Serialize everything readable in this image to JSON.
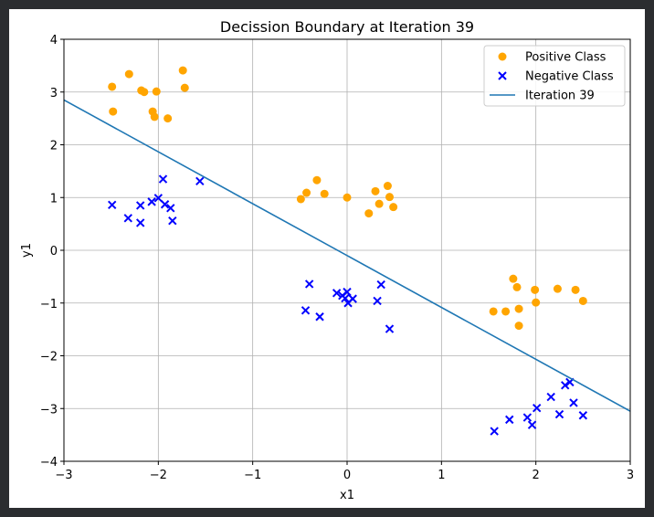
{
  "chart_data": {
    "type": "scatter",
    "title": "Decission Boundary at Iteration 39",
    "xlabel": "x1",
    "ylabel": "y1",
    "xlim": [
      -3,
      3
    ],
    "ylim": [
      -4,
      4
    ],
    "xticks": [
      -3,
      -2,
      -1,
      0,
      1,
      2,
      3
    ],
    "yticks": [
      -4,
      -3,
      -2,
      -1,
      0,
      1,
      2,
      3,
      4
    ],
    "xtick_labels": [
      "−3",
      "−2",
      "−1",
      "0",
      "1",
      "2",
      "3"
    ],
    "ytick_labels": [
      "−4",
      "−3",
      "−2",
      "−1",
      "0",
      "1",
      "2",
      "3",
      "4"
    ],
    "grid": true,
    "legend_position": "top-right",
    "series": [
      {
        "name": "Positive Class",
        "marker": "circle",
        "color": "#ffa500",
        "points": [
          [
            -2.49,
            3.1
          ],
          [
            -2.31,
            3.34
          ],
          [
            -2.18,
            3.03
          ],
          [
            -2.15,
            3.0
          ],
          [
            -2.02,
            3.01
          ],
          [
            -1.74,
            3.41
          ],
          [
            -1.72,
            3.08
          ],
          [
            -2.48,
            2.63
          ],
          [
            -2.06,
            2.63
          ],
          [
            -2.04,
            2.53
          ],
          [
            -1.9,
            2.5
          ],
          [
            -0.49,
            0.97
          ],
          [
            -0.43,
            1.09
          ],
          [
            -0.32,
            1.33
          ],
          [
            -0.24,
            1.07
          ],
          [
            0.0,
            1.0
          ],
          [
            0.3,
            1.12
          ],
          [
            0.34,
            0.88
          ],
          [
            0.43,
            1.22
          ],
          [
            0.45,
            1.01
          ],
          [
            0.49,
            0.82
          ],
          [
            0.23,
            0.7
          ],
          [
            1.55,
            -1.16
          ],
          [
            1.68,
            -1.16
          ],
          [
            1.76,
            -0.54
          ],
          [
            1.8,
            -0.7
          ],
          [
            1.82,
            -1.11
          ],
          [
            1.82,
            -1.43
          ],
          [
            1.99,
            -0.75
          ],
          [
            2.0,
            -0.99
          ],
          [
            2.23,
            -0.73
          ],
          [
            2.42,
            -0.75
          ],
          [
            2.5,
            -0.96
          ]
        ]
      },
      {
        "name": "Negative Class",
        "marker": "x",
        "color": "#0000ff",
        "points": [
          [
            -2.49,
            0.86
          ],
          [
            -2.32,
            0.61
          ],
          [
            -2.19,
            0.85
          ],
          [
            -2.19,
            0.52
          ],
          [
            -2.07,
            0.92
          ],
          [
            -2.0,
            0.99
          ],
          [
            -1.95,
            1.35
          ],
          [
            -1.93,
            0.87
          ],
          [
            -1.87,
            0.8
          ],
          [
            -1.85,
            0.56
          ],
          [
            -1.56,
            1.31
          ],
          [
            -0.44,
            -1.14
          ],
          [
            -0.4,
            -0.64
          ],
          [
            -0.29,
            -1.26
          ],
          [
            -0.11,
            -0.81
          ],
          [
            -0.05,
            -0.86
          ],
          [
            -0.02,
            -0.91
          ],
          [
            0.0,
            -0.79
          ],
          [
            0.01,
            -1.0
          ],
          [
            0.06,
            -0.92
          ],
          [
            0.32,
            -0.96
          ],
          [
            0.36,
            -0.65
          ],
          [
            0.45,
            -1.49
          ],
          [
            1.56,
            -3.43
          ],
          [
            1.72,
            -3.21
          ],
          [
            1.91,
            -3.17
          ],
          [
            1.96,
            -3.31
          ],
          [
            2.01,
            -2.99
          ],
          [
            2.16,
            -2.78
          ],
          [
            2.25,
            -3.11
          ],
          [
            2.31,
            -2.56
          ],
          [
            2.36,
            -2.5
          ],
          [
            2.4,
            -2.89
          ],
          [
            2.5,
            -3.13
          ]
        ]
      },
      {
        "name": "Iteration 39",
        "marker": "line",
        "color": "#1f77b4",
        "points": [
          [
            -3,
            2.85
          ],
          [
            3,
            -3.05
          ]
        ]
      }
    ]
  }
}
